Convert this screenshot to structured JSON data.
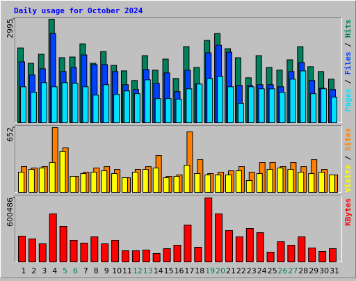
{
  "chart_data": [
    {
      "type": "bar",
      "title": "Daily usage for October 2024",
      "ylim": [
        0,
        2995
      ],
      "yticks": [
        2995
      ],
      "legend_separator": " / ",
      "series": [
        {
          "name": "Hits",
          "color": "#00805c",
          "values": [
            2160,
            1720,
            1980,
            2995,
            1880,
            1900,
            2280,
            1720,
            2060,
            1660,
            1500,
            1220,
            1940,
            1520,
            1840,
            1280,
            2200,
            1600,
            2380,
            2580,
            2140,
            1880,
            1300,
            1940,
            1600,
            1520,
            1820,
            2200,
            1620,
            1480,
            1260
          ]
        },
        {
          "name": "Files",
          "color": "#0040ff",
          "values": [
            1760,
            1380,
            1560,
            2580,
            1480,
            1600,
            1960,
            1680,
            1680,
            1480,
            1100,
            960,
            1540,
            1140,
            1440,
            900,
            1520,
            1120,
            2020,
            2240,
            2040,
            1080,
            1080,
            1100,
            1100,
            1040,
            1480,
            1740,
            1220,
            1000,
            960
          ]
        },
        {
          "name": "Pages",
          "color": "#00e0ff",
          "values": [
            1040,
            880,
            1160,
            1040,
            1160,
            1140,
            1040,
            800,
            1100,
            820,
            920,
            840,
            1240,
            700,
            700,
            680,
            980,
            1120,
            1280,
            1340,
            1040,
            560,
            1040,
            980,
            980,
            880,
            1260,
            1500,
            840,
            980,
            740
          ]
        }
      ]
    },
    {
      "type": "bar",
      "ylim": [
        0,
        652
      ],
      "yticks": [
        652
      ],
      "legend_separator": " / ",
      "series": [
        {
          "name": "Sites",
          "color": "#ff8000",
          "values": [
            259,
            245,
            259,
            652,
            448,
            161,
            203,
            245,
            259,
            231,
            147,
            231,
            259,
            371,
            161,
            175,
            609,
            329,
            189,
            203,
            217,
            259,
            203,
            301,
            301,
            259,
            301,
            259,
            329,
            231,
            175
          ]
        },
        {
          "name": "Visits",
          "color": "#ffff00",
          "values": [
            203,
            231,
            245,
            301,
            413,
            161,
            189,
            203,
            217,
            189,
            147,
            203,
            231,
            245,
            147,
            161,
            273,
            189,
            175,
            175,
            175,
            217,
            119,
            189,
            231,
            245,
            231,
            203,
            189,
            203,
            175
          ]
        }
      ]
    },
    {
      "type": "bar",
      "ylim": [
        0,
        600486
      ],
      "yticks": [
        600486
      ],
      "categories": [
        "1",
        "2",
        "3",
        "4",
        "5",
        "6",
        "7",
        "8",
        "9",
        "10",
        "11",
        "12",
        "13",
        "14",
        "15",
        "16",
        "17",
        "18",
        "19",
        "20",
        "21",
        "22",
        "23",
        "24",
        "25",
        "26",
        "27",
        "28",
        "29",
        "30",
        "31"
      ],
      "category_colors": [
        "#000000",
        "#000000",
        "#000000",
        "#000000",
        "#00805c",
        "#00805c",
        "#000000",
        "#000000",
        "#000000",
        "#000000",
        "#000000",
        "#00805c",
        "#00805c",
        "#000000",
        "#000000",
        "#000000",
        "#000000",
        "#000000",
        "#00805c",
        "#00805c",
        "#000000",
        "#000000",
        "#000000",
        "#000000",
        "#000000",
        "#00805c",
        "#00805c",
        "#000000",
        "#000000",
        "#000000",
        "#000000"
      ],
      "series": [
        {
          "name": "KBytes",
          "color": "#ff0000",
          "values": [
            241500,
            215400,
            169700,
            450400,
            332900,
            202300,
            176200,
            235000,
            169700,
            202300,
            104400,
            104400,
            111000,
            78300,
            124000,
            156600,
            345900,
            137100,
            600486,
            450400,
            293700,
            235000,
            313300,
            274100,
            91400,
            189300,
            156600,
            235000,
            130500,
            97900,
            124000
          ]
        }
      ]
    }
  ]
}
